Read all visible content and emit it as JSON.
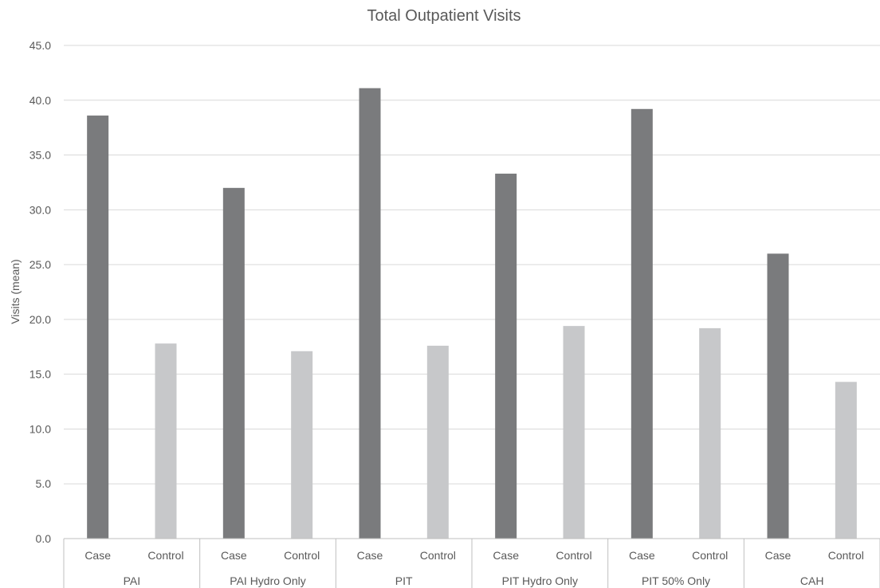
{
  "chart_data": {
    "type": "bar",
    "title": "Total Outpatient Visits",
    "ylabel": "Visits (mean)",
    "xlabel": "",
    "ylim": [
      0,
      45
    ],
    "ytick_step": 5,
    "ytick_labels": [
      "0.0",
      "5.0",
      "10.0",
      "15.0",
      "20.0",
      "25.0",
      "30.0",
      "35.0",
      "40.0",
      "45.0"
    ],
    "grid": true,
    "legend": "none",
    "groups": [
      {
        "name": "PAI",
        "categories": [
          "Case",
          "Control"
        ],
        "values": [
          38.6,
          17.8
        ]
      },
      {
        "name": "PAI Hydro Only",
        "categories": [
          "Case",
          "Control"
        ],
        "values": [
          32.0,
          17.1
        ]
      },
      {
        "name": "PIT",
        "categories": [
          "Case",
          "Control"
        ],
        "values": [
          41.1,
          17.6
        ]
      },
      {
        "name": "PIT Hydro Only",
        "categories": [
          "Case",
          "Control"
        ],
        "values": [
          33.3,
          19.4
        ]
      },
      {
        "name": "PIT 50% Only",
        "categories": [
          "Case",
          "Control"
        ],
        "values": [
          39.2,
          19.2
        ]
      },
      {
        "name": "CAH",
        "categories": [
          "Case",
          "Control"
        ],
        "values": [
          26.0,
          14.3
        ]
      }
    ],
    "colors": {
      "Case": "#7a7b7d",
      "Control": "#c7c8ca",
      "grid": "#d9d9d9",
      "axis": "#bfbfbf",
      "text": "#595959"
    }
  }
}
